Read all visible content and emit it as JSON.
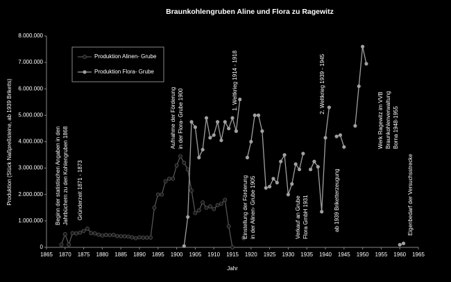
{
  "chart_data": {
    "type": "line",
    "title": "Braunkohlengruben Aline und Flora zu Ragewitz",
    "x_label": "Jahr",
    "y_label": "Produktion (Stück Naßpreßsteine, ab 1939 Briketts)",
    "xlim": [
      1865,
      1965
    ],
    "xticks": [
      1865,
      1870,
      1875,
      1880,
      1885,
      1890,
      1895,
      1900,
      1905,
      1910,
      1915,
      1920,
      1925,
      1930,
      1935,
      1940,
      1945,
      1950,
      1955,
      1960,
      1965
    ],
    "ylim": [
      0,
      8000000
    ],
    "yticks": [
      0,
      {
        "value": 1000000,
        "label": "1.000.000"
      },
      {
        "value": 2000000,
        "label": "2.000.000"
      },
      {
        "value": 3000000,
        "label": "3.000.000"
      },
      {
        "value": 4000000,
        "label": "4.000.000"
      },
      {
        "value": 5000000,
        "label": "5.000.000"
      },
      {
        "value": 6000000,
        "label": "6.000.000"
      },
      {
        "value": 7000000,
        "label": "7.000.000"
      },
      {
        "value": 8000000,
        "label": "8.000.000"
      }
    ],
    "grid": false,
    "legend": "upper left",
    "series": [
      {
        "name": "Produktion Alinen- Grube",
        "color": "#1a1a1a",
        "line_color": "#555555",
        "x": [
          1869,
          1870,
          1871,
          1872,
          1873,
          1874,
          1875,
          1876,
          1877,
          1878,
          1879,
          1880,
          1881,
          1882,
          1883,
          1884,
          1885,
          1886,
          1887,
          1888,
          1889,
          1890,
          1891,
          1892,
          1893,
          1894,
          1895,
          1896,
          1897,
          1898,
          1899,
          1900,
          1901,
          1902,
          1903,
          1904,
          1905,
          1906,
          1907,
          1908,
          1909,
          1910,
          1911,
          1912,
          1913,
          1914,
          1915,
          1916,
          1918
        ],
        "values": [
          100000,
          500000,
          100000,
          540000,
          530000,
          560000,
          620000,
          710000,
          540000,
          530000,
          480000,
          450000,
          470000,
          460000,
          470000,
          430000,
          420000,
          420000,
          410000,
          380000,
          350000,
          380000,
          370000,
          370000,
          370000,
          1500000,
          2000000,
          2000000,
          2500000,
          2600000,
          2600000,
          3100000,
          3450000,
          3200000,
          2950000,
          2150000,
          1300000,
          1400000,
          1700000,
          1500000,
          1550000,
          1450000,
          1600000,
          1650000,
          1800000,
          800000,
          0,
          null,
          350000
        ]
      },
      {
        "name": "Produktion Flora- Grube",
        "color": "#a0a0a0",
        "line_color": "#a0a0a0",
        "x": [
          1902,
          1903,
          1904,
          1905,
          1906,
          1907,
          1908,
          1909,
          1910,
          1911,
          1912,
          1913,
          1914,
          1915,
          1916,
          1917,
          1918,
          1919,
          1920,
          1921,
          1922,
          1923,
          1924,
          1925,
          1926,
          1927,
          1928,
          1929,
          1930,
          1931,
          1932,
          1933,
          1934,
          1935,
          1936,
          1937,
          1938,
          1939,
          1940,
          1941,
          1942,
          1943,
          1944,
          1945,
          1946,
          1948,
          1949,
          1950,
          1951,
          1955,
          1960,
          1961
        ],
        "values": [
          50000,
          1150000,
          4750000,
          4550000,
          3400000,
          3700000,
          4900000,
          4150000,
          4250000,
          4750000,
          4050000,
          4750000,
          4500000,
          4900000,
          4400000,
          5600000,
          null,
          3400000,
          4000000,
          5000000,
          5000000,
          4400000,
          2250000,
          2300000,
          2600000,
          2450000,
          3250000,
          3500000,
          2000000,
          2400000,
          3150000,
          2950000,
          3550000,
          null,
          2950000,
          3250000,
          3050000,
          1350000,
          4150000,
          5300000,
          null,
          4200000,
          4250000,
          3800000,
          null,
          4600000,
          6100000,
          7600000,
          6950000,
          null,
          100000,
          150000
        ]
      }
    ],
    "annotations": [
      "Beginn der statistischen Angaben in den",
      "Jahrbüchern  zu den Kohlengruben 1868",
      "Gründerzeit  1871 - 1873",
      "Aufnahme   der Förderung",
      "in der Flora- Grube 1900",
      "Einstellung  der Förderung",
      "in der Alinen- Grube 1905",
      "1. Weltkrieg 1914 - 1918",
      "Verkauf an Grube",
      "Flora GmbH 1931",
      "2. Weltkrieg 1939 - 1945",
      "ab 1939 Briketterzeugung",
      "Werk Ragewitz im VVB",
      "Braunkohlenverwaltung",
      "Borna 1948-1955",
      "Eigenbedarf der Versuchsstrecke"
    ]
  }
}
